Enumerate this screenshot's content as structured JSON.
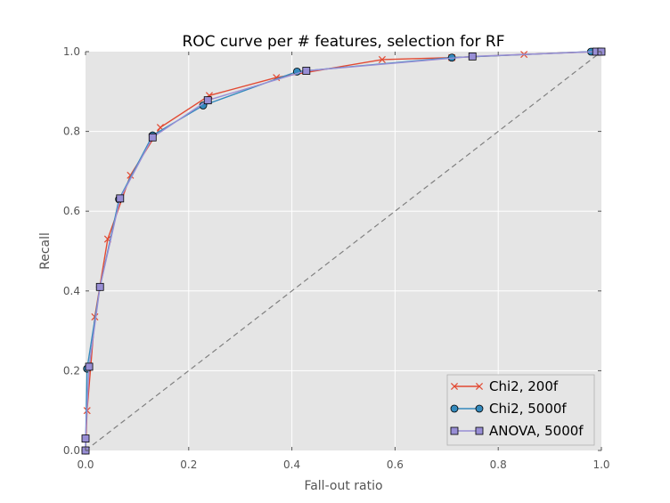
{
  "chart_data": {
    "type": "line",
    "title": "ROC curve per # features, selection for RF",
    "xlabel": "Fall-out ratio",
    "ylabel": "Recall",
    "xlim": [
      0.0,
      1.0
    ],
    "ylim": [
      0.0,
      1.0
    ],
    "xticks": [
      "0.0",
      "0.2",
      "0.4",
      "0.6",
      "0.8",
      "1.0"
    ],
    "yticks": [
      "0.0",
      "0.2",
      "0.4",
      "0.6",
      "0.8",
      "1.0"
    ],
    "grid": true,
    "legend_position": "lower-right",
    "reference_line": {
      "from": [
        0,
        0
      ],
      "to": [
        1,
        1
      ],
      "style": "dashed",
      "color": "#808080"
    },
    "series": [
      {
        "name": "Chi2, 200f",
        "marker": "x",
        "color": "#E24A33",
        "points": [
          [
            0.0,
            0.0
          ],
          [
            0.003,
            0.1
          ],
          [
            0.018,
            0.335
          ],
          [
            0.043,
            0.53
          ],
          [
            0.087,
            0.69
          ],
          [
            0.145,
            0.81
          ],
          [
            0.24,
            0.89
          ],
          [
            0.37,
            0.935
          ],
          [
            0.575,
            0.98
          ],
          [
            0.71,
            0.985
          ],
          [
            0.85,
            0.993
          ],
          [
            0.985,
            1.0
          ],
          [
            1.0,
            1.0
          ]
        ]
      },
      {
        "name": "Chi2, 5000f",
        "marker": "circle",
        "color": "#348ABD",
        "points": [
          [
            0.0,
            0.0
          ],
          [
            0.003,
            0.205
          ],
          [
            0.028,
            0.41
          ],
          [
            0.065,
            0.63
          ],
          [
            0.13,
            0.79
          ],
          [
            0.228,
            0.865
          ],
          [
            0.41,
            0.95
          ],
          [
            0.71,
            0.985
          ],
          [
            0.98,
            1.0
          ],
          [
            1.0,
            1.0
          ]
        ]
      },
      {
        "name": "ANOVA, 5000f",
        "marker": "square",
        "color": "#988ED5",
        "points": [
          [
            0.0,
            0.0
          ],
          [
            0.0,
            0.03
          ],
          [
            0.007,
            0.21
          ],
          [
            0.028,
            0.41
          ],
          [
            0.067,
            0.632
          ],
          [
            0.13,
            0.785
          ],
          [
            0.237,
            0.878
          ],
          [
            0.428,
            0.952
          ],
          [
            0.75,
            0.988
          ],
          [
            0.99,
            1.0
          ],
          [
            1.0,
            1.0
          ]
        ]
      }
    ]
  }
}
